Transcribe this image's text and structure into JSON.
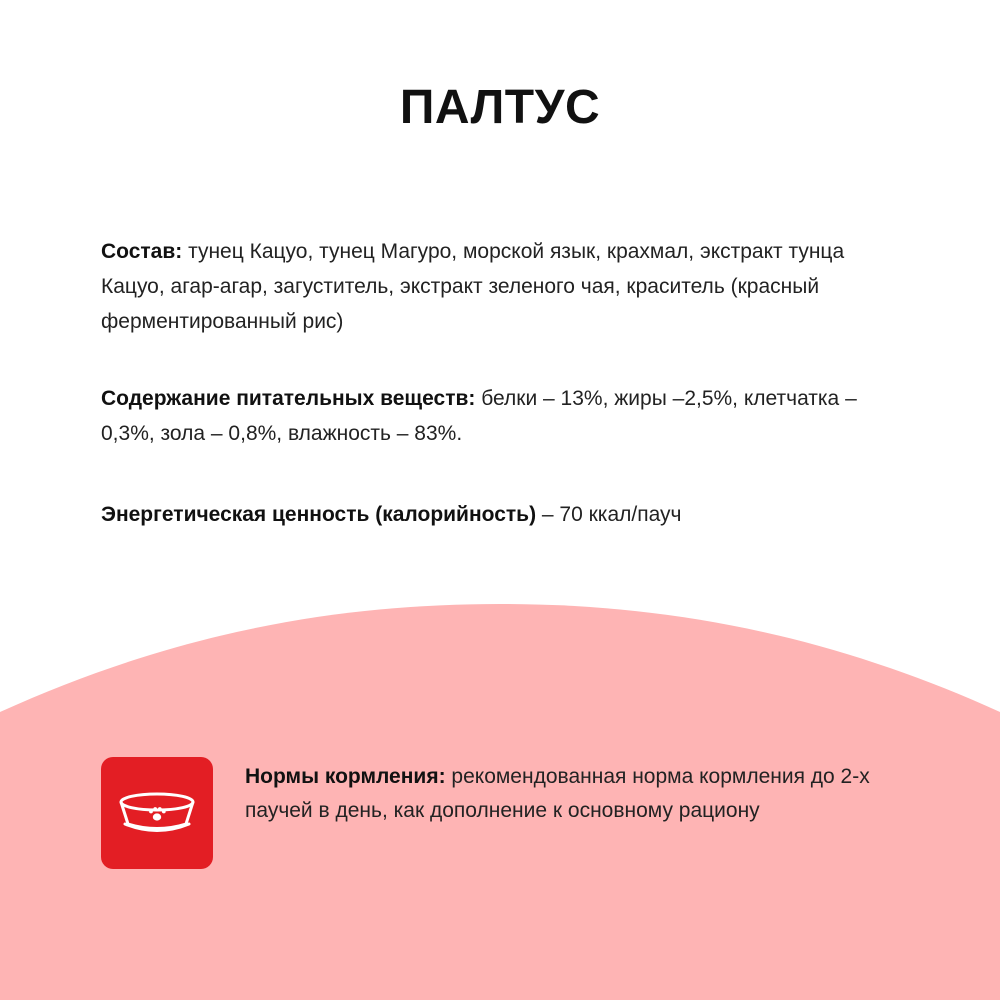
{
  "title": "ПАЛТУС",
  "composition": {
    "label": "Состав:",
    "text": " тунец Кацуо, тунец Магуро, морской язык, крахмал, экстракт тунца Кацуо, агар-агар, загуститель, экстракт зеленого чая, краситель (красный ферментированный рис)"
  },
  "nutrients": {
    "label": "Содержание питательных веществ:",
    "text": " белки – 13%, жиры –2,5%, клетчатка – 0,3%, зола – 0,8%, влажность – 83%."
  },
  "energy": {
    "label": "Энергетическая ценность (калорийность)",
    "text": " – 70 ккал/пауч"
  },
  "feeding": {
    "icon": "pet-bowl-icon",
    "label": "Нормы кормления:",
    "text": " рекомендованная норма кормления до 2-х паучей в день, как дополнение к основному рациону"
  },
  "colors": {
    "background": "#ffffff",
    "pink_area": "#feb4b4",
    "icon_background": "#e31e24",
    "text": "#222222"
  }
}
